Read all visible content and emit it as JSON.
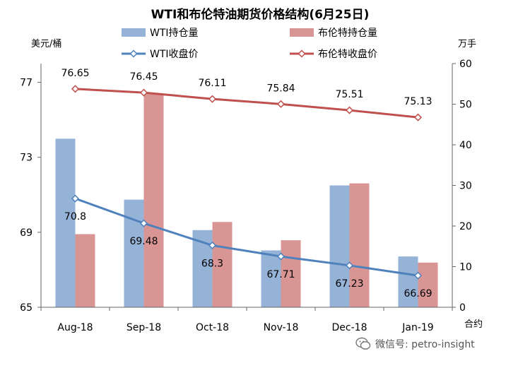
{
  "chart_data": {
    "type": "bar",
    "title": "WTI和布伦特油期货价格结构(6月25日)",
    "y_left_unit": "美元/桶",
    "y_right_unit": "万手",
    "x_unit": "合约",
    "categories": [
      "Aug-18",
      "Sep-18",
      "Oct-18",
      "Nov-18",
      "Dec-18",
      "Jan-19"
    ],
    "left_axis": {
      "range": [
        65,
        78
      ],
      "ticks": [
        65,
        69,
        73,
        77
      ]
    },
    "right_axis": {
      "range": [
        0,
        60
      ],
      "ticks": [
        0,
        10,
        20,
        30,
        40,
        50,
        60
      ]
    },
    "bar_series": [
      {
        "name": "WTI持仓量",
        "axis": "right",
        "color": "#95b3d7",
        "values": [
          41.5,
          26.5,
          19,
          14,
          30,
          12.5
        ]
      },
      {
        "name": "布伦特持仓量",
        "axis": "right",
        "color": "#d99594",
        "values": [
          18,
          52.5,
          21,
          16.5,
          30.5,
          11
        ]
      }
    ],
    "line_series": [
      {
        "name": "WTI收盘价",
        "axis": "left",
        "color": "#4f81bd",
        "values": [
          70.8,
          69.48,
          68.3,
          67.71,
          67.23,
          66.69
        ],
        "labels": [
          "70.8",
          "69.48",
          "68.3",
          "67.71",
          "67.23",
          "66.69"
        ]
      },
      {
        "name": "布伦特收盘价",
        "axis": "left",
        "color": "#c0504d",
        "values": [
          76.65,
          76.45,
          76.11,
          75.84,
          75.51,
          75.13
        ],
        "labels": [
          "76.65",
          "76.45",
          "76.11",
          "75.84",
          "75.51",
          "75.13"
        ]
      }
    ],
    "legend_position": "top",
    "grid": false
  },
  "watermark": {
    "text": "微信号: petro-insight",
    "icon": "wechat-icon"
  }
}
